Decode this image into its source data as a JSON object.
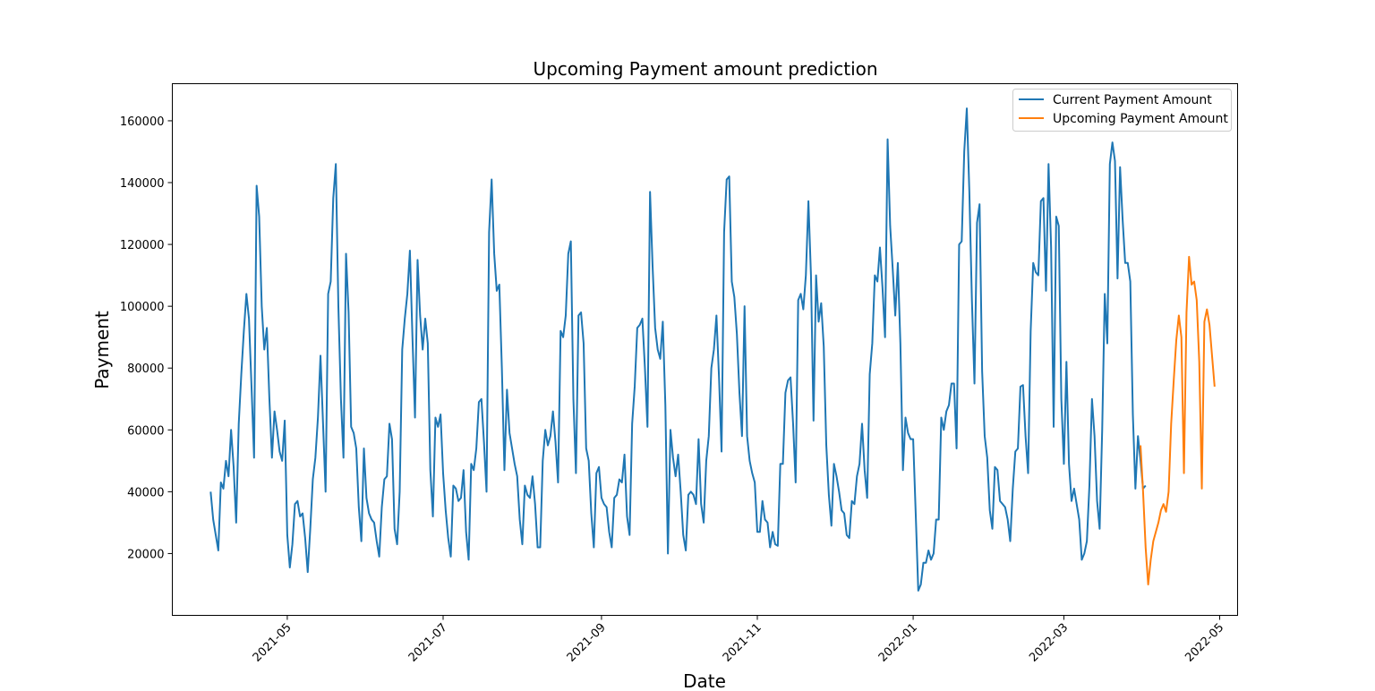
{
  "chart_data": {
    "type": "line",
    "title": "Upcoming Payment amount prediction",
    "xlabel": "Date",
    "ylabel": "Payment",
    "x_axis": {
      "kind": "date",
      "range": [
        "2021-03-17",
        "2022-05-08"
      ],
      "ticks": [
        {
          "date": "2021-05-01",
          "label": "2021-05"
        },
        {
          "date": "2021-07-01",
          "label": "2021-07"
        },
        {
          "date": "2021-09-01",
          "label": "2021-09"
        },
        {
          "date": "2021-11-01",
          "label": "2021-11"
        },
        {
          "date": "2022-01-01",
          "label": "2022-01"
        },
        {
          "date": "2022-03-01",
          "label": "2022-03"
        },
        {
          "date": "2022-05-01",
          "label": "2022-05"
        }
      ]
    },
    "y_axis": {
      "range": [
        0,
        172000
      ],
      "ticks": [
        {
          "value": 20000,
          "label": "20000"
        },
        {
          "value": 40000,
          "label": "40000"
        },
        {
          "value": 60000,
          "label": "60000"
        },
        {
          "value": 80000,
          "label": "80000"
        },
        {
          "value": 100000,
          "label": "100000"
        },
        {
          "value": 120000,
          "label": "120000"
        },
        {
          "value": 140000,
          "label": "140000"
        },
        {
          "value": 160000,
          "label": "160000"
        }
      ]
    },
    "grid": false,
    "legend": {
      "placement": "top-right"
    },
    "series": [
      {
        "name": "Current Payment Amount",
        "color": "#1f77b4",
        "start_date": "2021-04-01",
        "step_days": 1,
        "values": [
          40000,
          31000,
          26000,
          21000,
          43000,
          41000,
          50000,
          45000,
          60000,
          48000,
          30000,
          62000,
          78000,
          92000,
          104000,
          96000,
          74000,
          51000,
          139000,
          129000,
          100000,
          86000,
          93000,
          70000,
          51000,
          66000,
          60000,
          53000,
          50000,
          63000,
          26000,
          15500,
          23000,
          36000,
          37000,
          32000,
          33000,
          25000,
          14000,
          28000,
          44000,
          51000,
          64000,
          84000,
          62000,
          40000,
          104000,
          108000,
          135000,
          146000,
          100000,
          70000,
          51000,
          117000,
          98000,
          61000,
          59000,
          54000,
          35000,
          24000,
          54000,
          38000,
          33000,
          31000,
          30000,
          24000,
          19000,
          35000,
          44000,
          45000,
          62000,
          57000,
          28000,
          23000,
          40000,
          86000,
          96000,
          104000,
          118000,
          90000,
          64000,
          115000,
          97000,
          86000,
          96000,
          88000,
          47000,
          32000,
          64000,
          61000,
          65000,
          46000,
          34000,
          25000,
          19000,
          42000,
          41000,
          37000,
          38000,
          47000,
          27000,
          18000,
          49000,
          47000,
          54000,
          69000,
          70000,
          56000,
          40000,
          124000,
          141000,
          117000,
          105000,
          107000,
          80000,
          47000,
          73000,
          59000,
          54000,
          49000,
          45000,
          31000,
          23000,
          42000,
          39000,
          38000,
          45000,
          36000,
          22000,
          22000,
          50000,
          60000,
          55000,
          58000,
          66000,
          56000,
          43000,
          92000,
          90000,
          97000,
          117000,
          121000,
          70000,
          46000,
          97000,
          98000,
          88000,
          54000,
          50000,
          33000,
          22000,
          46000,
          48000,
          38000,
          36000,
          35000,
          27000,
          22000,
          38000,
          39000,
          44000,
          43000,
          52000,
          32000,
          26000,
          62000,
          74000,
          93000,
          94000,
          96000,
          80000,
          61000,
          137000,
          113000,
          93000,
          86000,
          83000,
          95000,
          68000,
          20000,
          60000,
          51000,
          45000,
          52000,
          40000,
          26000,
          21000,
          39000,
          40000,
          39000,
          36000,
          57000,
          36000,
          30000,
          50000,
          58000,
          80000,
          86000,
          97000,
          77000,
          53000,
          124000,
          141000,
          142000,
          108000,
          103000,
          91000,
          72000,
          58000,
          100000,
          58000,
          50000,
          46000,
          43000,
          27000,
          27000,
          37000,
          31000,
          30000,
          22000,
          27000,
          23000,
          22500,
          49000,
          49000,
          72000,
          76000,
          77000,
          62000,
          43000,
          102000,
          104000,
          99000,
          110000,
          134000,
          110000,
          63000,
          110000,
          95000,
          101000,
          87000,
          55000,
          39000,
          29000,
          49000,
          45000,
          40000,
          34000,
          33000,
          26000,
          25000,
          37000,
          36000,
          45000,
          49000,
          62000,
          47000,
          38000,
          78000,
          88000,
          110000,
          108000,
          119000,
          106000,
          90000,
          154000,
          126000,
          112000,
          97000,
          114000,
          88000,
          47000,
          64000,
          59000,
          57000,
          57000,
          33000,
          8000,
          10000,
          17000,
          17000,
          21000,
          18000,
          20000,
          31000,
          31000,
          64000,
          60000,
          66000,
          68000,
          75000,
          75000,
          54000,
          120000,
          121000,
          150000,
          164000,
          137000,
          102000,
          75000,
          127000,
          133000,
          79000,
          58000,
          51000,
          34000,
          28000,
          48000,
          47000,
          37000,
          36000,
          35000,
          31000,
          24000,
          41000,
          53000,
          54000,
          74000,
          74500,
          58000,
          46000,
          92000,
          114000,
          111000,
          110000,
          134000,
          135000,
          105000,
          146000,
          119000,
          61000,
          129000,
          126000,
          70000,
          49000,
          82000,
          49000,
          37000,
          41000,
          36000,
          31000,
          18000,
          20000,
          24000,
          42000,
          70000,
          58000,
          37000,
          28000,
          60000,
          104000,
          88000,
          146000,
          153000,
          147000,
          109000,
          145000,
          128000,
          114000,
          114000,
          108000,
          65000,
          41000,
          58000,
          50000,
          41000,
          42000
        ]
      },
      {
        "name": "Upcoming Payment Amount",
        "color": "#ff7f0e",
        "start_date": "2022-03-31",
        "step_days": 1,
        "values": [
          55000,
          40000,
          22000,
          10000,
          18000,
          24000,
          27000,
          30000,
          34000,
          36000,
          33500,
          40000,
          62000,
          76000,
          89000,
          97000,
          90000,
          46000,
          98000,
          116000,
          107000,
          108000,
          102000,
          82000,
          41000,
          95000,
          99000,
          94000,
          84000,
          74000
        ]
      }
    ]
  }
}
